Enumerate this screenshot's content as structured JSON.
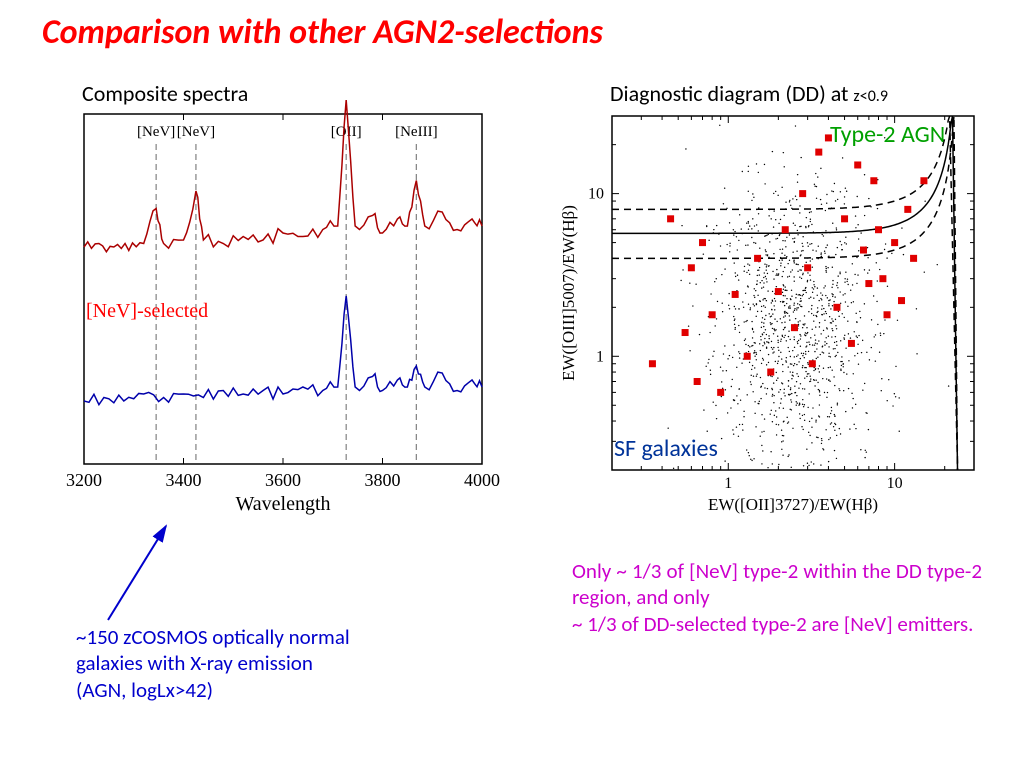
{
  "title": {
    "text": "Comparison with other AGN2-selections",
    "color": "#ff0000",
    "fontsize": 34
  },
  "left": {
    "subtitle": "Composite spectra",
    "chart": {
      "type": "line",
      "xlim": [
        3200,
        4000
      ],
      "xlabel": "Wavelength",
      "xlabel_fontsize": 20,
      "xlabel_fontfamily": "Times New Roman",
      "xticks": [
        3200,
        3400,
        3600,
        3800,
        4000
      ],
      "vlines": [
        3345,
        3425,
        3727,
        3868
      ],
      "vline_style": "dashed",
      "vline_color": "#808080",
      "line_labels": [
        {
          "text": "[NeV]",
          "x": 3345
        },
        {
          "text": "[NeV]",
          "x": 3425
        },
        {
          "text": "[OII]",
          "x": 3727
        },
        {
          "text": "[NeIII]",
          "x": 3868
        }
      ],
      "line_label_fontfamily": "Times New Roman",
      "line_label_fontsize": 15,
      "series": [
        {
          "name": "nev_selected",
          "color": "#aa0000",
          "linewidth": 1.5,
          "y_offset": 0.62,
          "points": [
            [
              3200,
              0.0
            ],
            [
              3230,
              0.01
            ],
            [
              3260,
              0.0
            ],
            [
              3290,
              -0.01
            ],
            [
              3320,
              0.01
            ],
            [
              3345,
              0.11
            ],
            [
              3360,
              0.01
            ],
            [
              3400,
              0.02
            ],
            [
              3425,
              0.16
            ],
            [
              3440,
              0.02
            ],
            [
              3480,
              0.01
            ],
            [
              3520,
              0.03
            ],
            [
              3560,
              0.02
            ],
            [
              3600,
              0.04
            ],
            [
              3640,
              0.03
            ],
            [
              3680,
              0.05
            ],
            [
              3710,
              0.06
            ],
            [
              3727,
              0.42
            ],
            [
              3745,
              0.06
            ],
            [
              3780,
              0.09
            ],
            [
              3800,
              0.04
            ],
            [
              3830,
              0.08
            ],
            [
              3850,
              0.06
            ],
            [
              3868,
              0.19
            ],
            [
              3885,
              0.06
            ],
            [
              3920,
              0.1
            ],
            [
              3950,
              0.05
            ],
            [
              3980,
              0.08
            ],
            [
              4000,
              0.06
            ]
          ]
        },
        {
          "name": "xray_normal",
          "color": "#0000aa",
          "linewidth": 1.5,
          "y_offset": 0.18,
          "points": [
            [
              3200,
              0.0
            ],
            [
              3240,
              0.01
            ],
            [
              3280,
              0.0
            ],
            [
              3320,
              0.02
            ],
            [
              3360,
              0.01
            ],
            [
              3400,
              0.02
            ],
            [
              3440,
              0.01
            ],
            [
              3480,
              0.03
            ],
            [
              3520,
              0.02
            ],
            [
              3560,
              0.03
            ],
            [
              3600,
              0.02
            ],
            [
              3640,
              0.04
            ],
            [
              3680,
              0.03
            ],
            [
              3710,
              0.04
            ],
            [
              3727,
              0.3
            ],
            [
              3745,
              0.04
            ],
            [
              3780,
              0.07
            ],
            [
              3800,
              0.03
            ],
            [
              3830,
              0.06
            ],
            [
              3850,
              0.04
            ],
            [
              3868,
              0.1
            ],
            [
              3885,
              0.04
            ],
            [
              3920,
              0.08
            ],
            [
              3950,
              0.03
            ],
            [
              3980,
              0.06
            ],
            [
              4000,
              0.04
            ]
          ]
        }
      ],
      "annotation": {
        "text": "[NeV]-selected",
        "color": "#ff0000"
      },
      "background_color": "#ffffff",
      "axis_color": "#000000"
    },
    "arrow": {
      "color": "#0000cc",
      "stroke_width": 2
    },
    "caption": {
      "color": "#0000cc",
      "lines": [
        "~150 zCOSMOS optically normal",
        "galaxies with X-ray emission",
        "(AGN, logLx>42)"
      ]
    }
  },
  "right": {
    "subtitle_main": "Diagnostic diagram (DD) at ",
    "subtitle_small": "z<0.9",
    "chart": {
      "type": "scatter",
      "xscale": "log",
      "yscale": "log",
      "xlim": [
        0.2,
        30
      ],
      "ylim": [
        0.2,
        30
      ],
      "xticks": [
        1,
        10
      ],
      "yticks": [
        1,
        10
      ],
      "xlabel": "EW([OII]3727)/EW(Hβ)",
      "ylabel": "EW([OIII]5007)/EW(Hβ)",
      "label_fontsize": 17,
      "label_fontfamily": "Times New Roman",
      "curves": [
        {
          "name": "lower",
          "style": "dashed",
          "color": "#000000",
          "y0": 4.0
        },
        {
          "name": "mid",
          "style": "solid",
          "color": "#000000",
          "y0": 5.7
        },
        {
          "name": "upper",
          "style": "dashed",
          "color": "#000000",
          "y0": 8.0
        }
      ],
      "curve_x_asymptote": 24,
      "red_markers": {
        "color": "#e00000",
        "shape": "square",
        "size": 7,
        "points": [
          [
            0.35,
            0.9
          ],
          [
            0.55,
            1.4
          ],
          [
            0.65,
            0.7
          ],
          [
            0.8,
            1.8
          ],
          [
            0.9,
            0.6
          ],
          [
            1.1,
            2.4
          ],
          [
            0.6,
            3.5
          ],
          [
            0.7,
            5.0
          ],
          [
            0.45,
            7.0
          ],
          [
            1.3,
            1.0
          ],
          [
            1.5,
            4.0
          ],
          [
            1.8,
            0.8
          ],
          [
            2.0,
            2.5
          ],
          [
            2.2,
            6.0
          ],
          [
            2.5,
            1.5
          ],
          [
            2.8,
            10.0
          ],
          [
            3.0,
            3.5
          ],
          [
            3.2,
            0.9
          ],
          [
            3.5,
            18.0
          ],
          [
            4.0,
            22.0
          ],
          [
            4.5,
            2.0
          ],
          [
            5.0,
            7.0
          ],
          [
            5.5,
            1.2
          ],
          [
            6.0,
            15.0
          ],
          [
            6.5,
            4.5
          ],
          [
            7.0,
            2.8
          ],
          [
            7.5,
            12.0
          ],
          [
            8.0,
            6.0
          ],
          [
            8.5,
            3.0
          ],
          [
            9.0,
            1.8
          ],
          [
            10.0,
            5.0
          ],
          [
            11.0,
            2.2
          ],
          [
            12.0,
            8.0
          ],
          [
            13.0,
            4.0
          ],
          [
            15.0,
            12.0
          ]
        ]
      },
      "field_dots": {
        "color": "#000000",
        "size": 0.7,
        "count_hint": 1200,
        "cluster_center_log": [
          0.4,
          0.18
        ],
        "cluster_spread": 0.45
      },
      "region_labels": [
        {
          "text": "Type-2 AGN",
          "color": "#00a000",
          "pos": "top-right",
          "fontsize": 24
        },
        {
          "text": "SF galaxies",
          "color": "#003399",
          "pos": "lower-left",
          "fontsize": 24
        }
      ],
      "background_color": "#ffffff",
      "axis_color": "#000000"
    },
    "caption": {
      "color": "#cc00cc",
      "lines": [
        "Only ~ 1/3 of [NeV] type-2 within the DD type-2 region, and only",
        "~ 1/3 of DD-selected type-2 are [NeV] emitters."
      ]
    }
  }
}
